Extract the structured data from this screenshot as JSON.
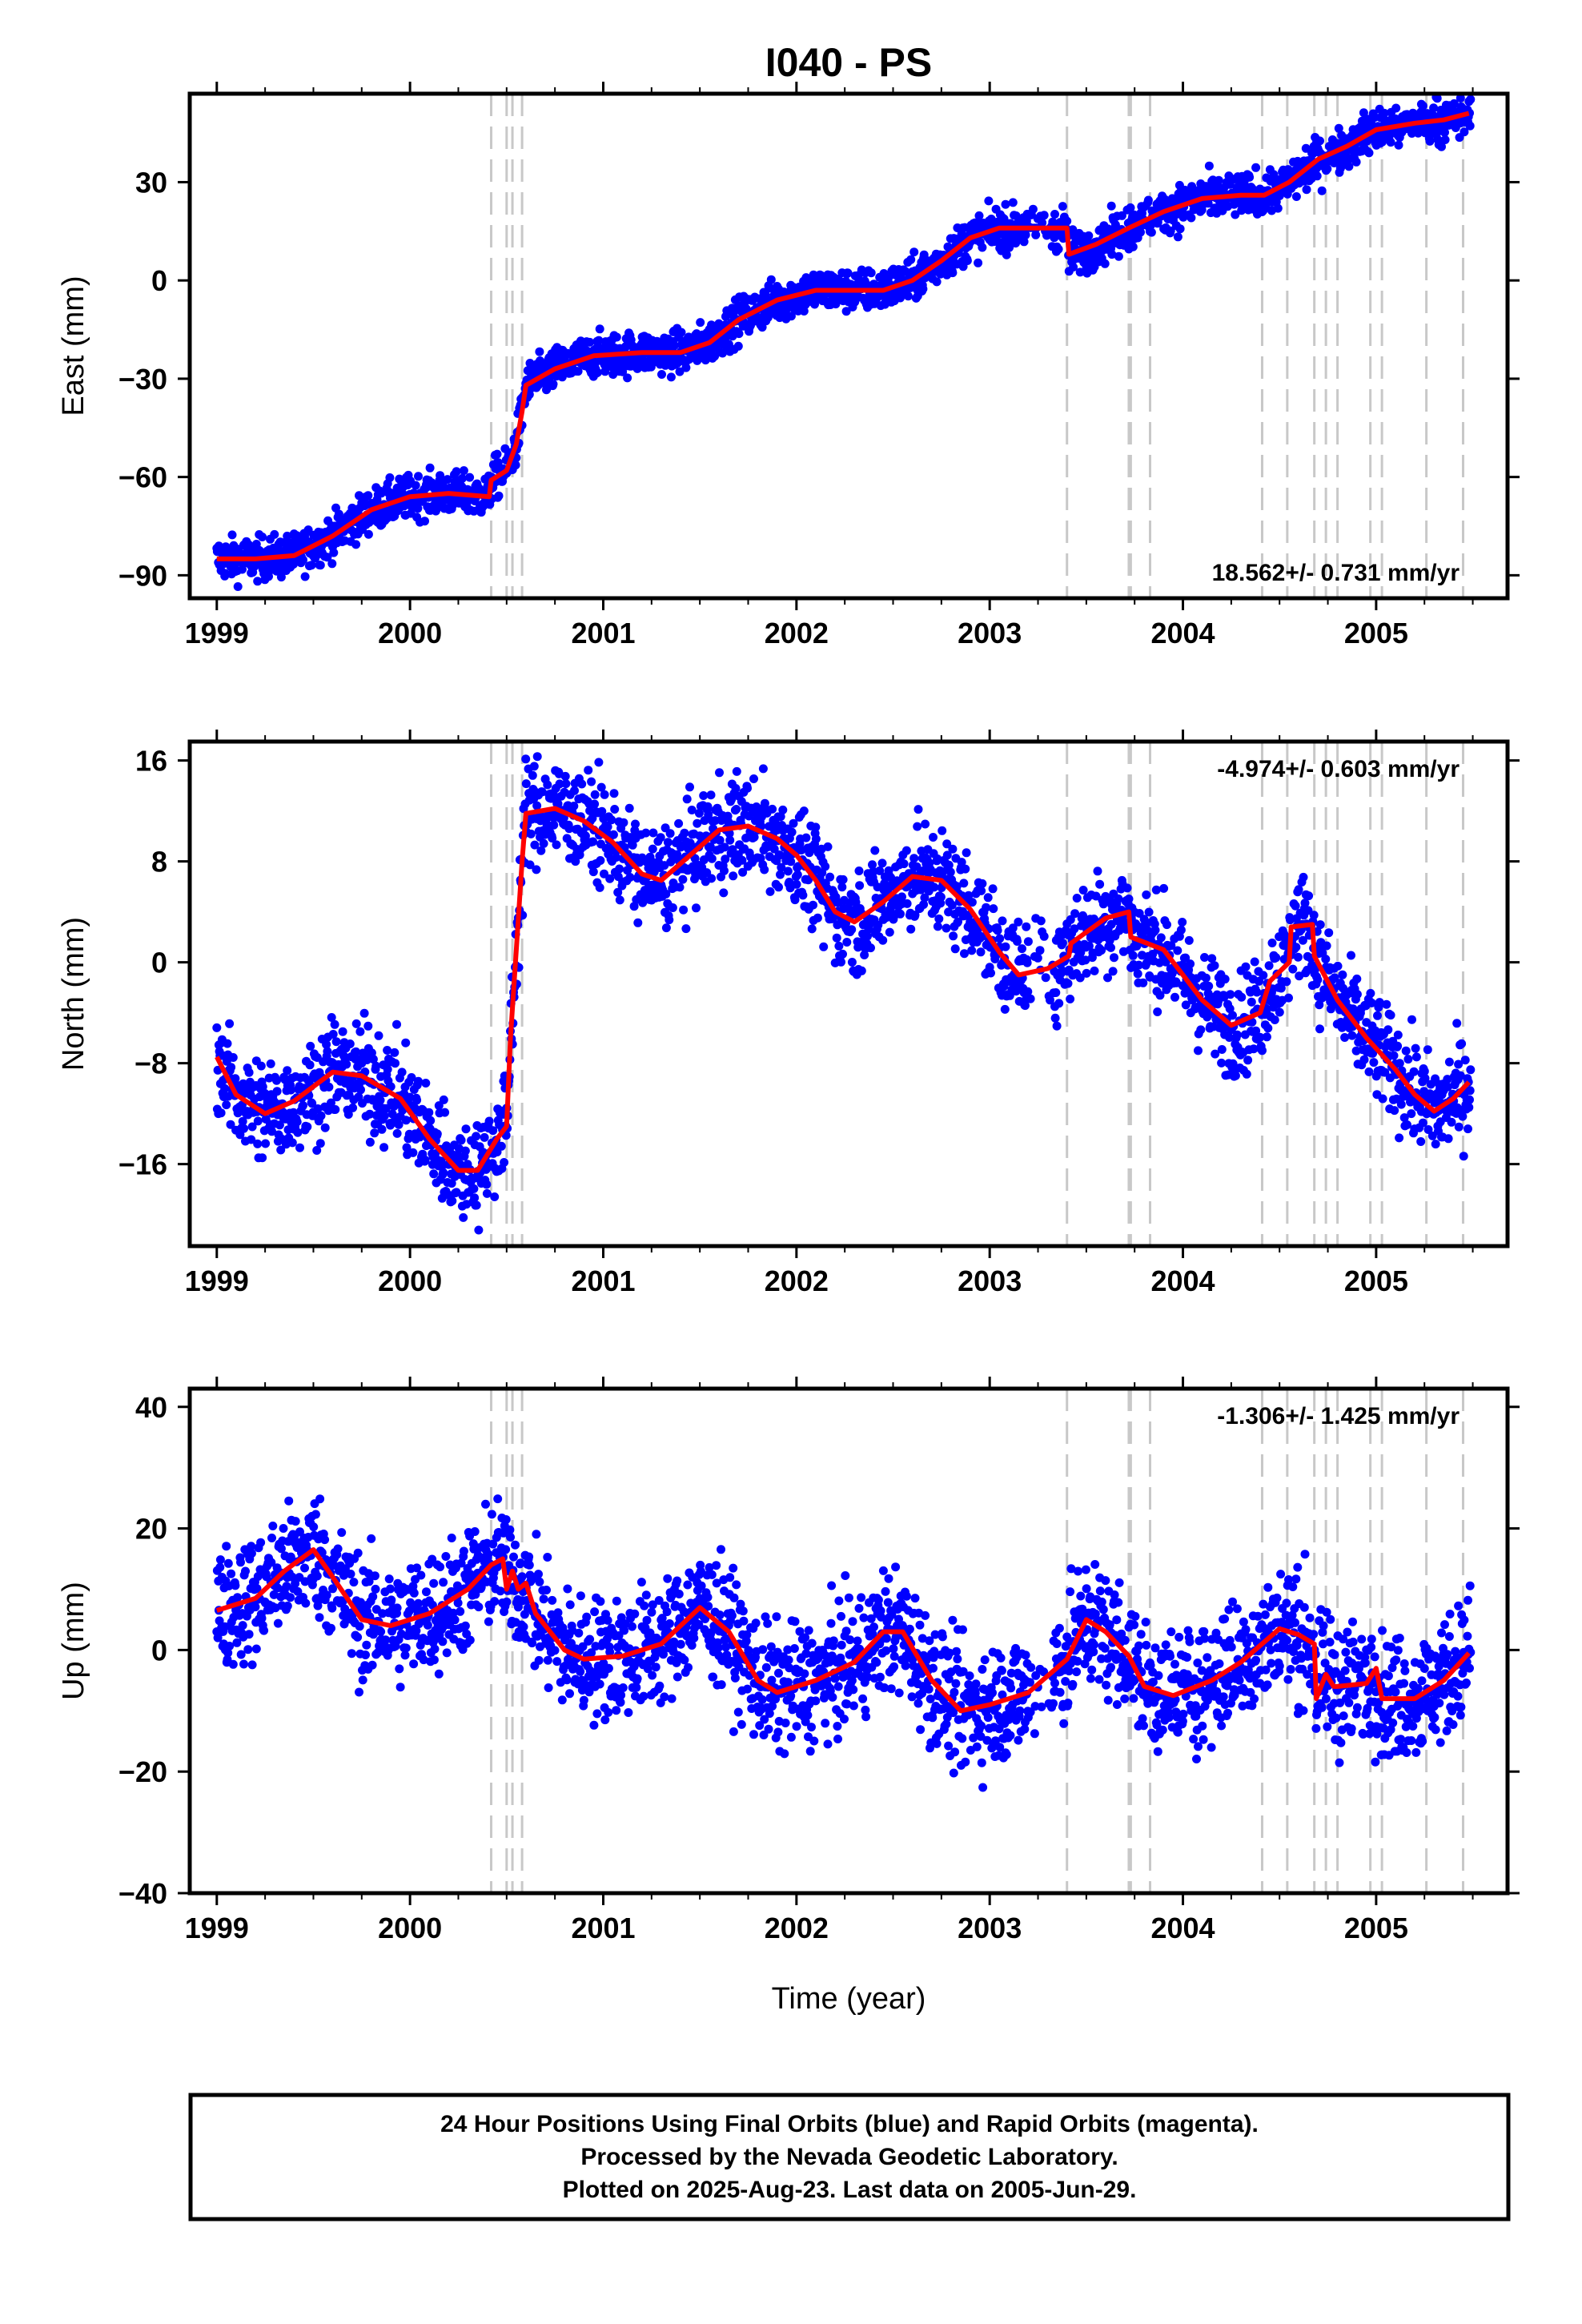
{
  "title": "I040 - PS",
  "xlabel": "Time (year)",
  "footer": [
    "24 Hour Positions Using Final Orbits (blue) and Rapid Orbits (magenta).",
    "Processed by the Nevada Geodetic Laboratory.",
    "Plotted on 2025-Aug-23. Last data on 2005-Jun-29."
  ],
  "colors": {
    "final_orbits": "#0000ff",
    "model": "#ff0000",
    "events": "#c8c8c8"
  },
  "chart_data": {
    "type": "scatter",
    "x_ticks": [
      1999,
      2000,
      2001,
      2002,
      2003,
      2004,
      2005
    ],
    "xlim": [
      1998.86,
      2005.68
    ],
    "event_lines": [
      2000.42,
      2000.5,
      2000.53,
      2000.58,
      2003.4,
      2003.72,
      2003.73,
      2003.83,
      2004.41,
      2004.54,
      2004.68,
      2004.74,
      2004.8,
      2004.97,
      2005.03,
      2005.26,
      2005.45
    ],
    "panels": [
      {
        "ylabel": "East (mm)",
        "ylim": [
          -97,
          57
        ],
        "y_ticks": [
          -90,
          -60,
          -30,
          0,
          30
        ],
        "rate": "18.562+/- 0.731 mm/yr",
        "rate_position": "bottom-right",
        "scatter": 3.2,
        "model": [
          [
            1999.0,
            -85
          ],
          [
            1999.2,
            -85
          ],
          [
            1999.4,
            -84
          ],
          [
            1999.6,
            -78
          ],
          [
            1999.8,
            -70
          ],
          [
            2000.0,
            -66
          ],
          [
            2000.2,
            -65
          ],
          [
            2000.41,
            -66
          ],
          [
            2000.42,
            -61
          ],
          [
            2000.5,
            -58
          ],
          [
            2000.55,
            -50
          ],
          [
            2000.58,
            -40
          ],
          [
            2000.6,
            -32
          ],
          [
            2000.75,
            -27
          ],
          [
            2000.95,
            -23
          ],
          [
            2001.2,
            -22
          ],
          [
            2001.4,
            -22
          ],
          [
            2001.55,
            -19
          ],
          [
            2001.7,
            -12
          ],
          [
            2001.9,
            -6
          ],
          [
            2002.1,
            -3
          ],
          [
            2002.3,
            -3
          ],
          [
            2002.45,
            -3
          ],
          [
            2002.6,
            0
          ],
          [
            2002.75,
            6
          ],
          [
            2002.9,
            13
          ],
          [
            2003.05,
            16
          ],
          [
            2003.2,
            16
          ],
          [
            2003.4,
            16
          ],
          [
            2003.41,
            8
          ],
          [
            2003.55,
            11
          ],
          [
            2003.72,
            16
          ],
          [
            2003.9,
            21
          ],
          [
            2004.1,
            25
          ],
          [
            2004.3,
            26
          ],
          [
            2004.42,
            26
          ],
          [
            2004.55,
            30
          ],
          [
            2004.7,
            37
          ],
          [
            2004.85,
            41
          ],
          [
            2005.0,
            46
          ],
          [
            2005.2,
            48
          ],
          [
            2005.35,
            49
          ],
          [
            2005.48,
            51
          ]
        ]
      },
      {
        "ylabel": "North (mm)",
        "ylim": [
          -22.5,
          17.5
        ],
        "y_ticks": [
          -16,
          -8,
          0,
          8,
          16
        ],
        "rate": "-4.974+/- 0.603 mm/yr",
        "rate_position": "top-right",
        "scatter": 2.0,
        "model": [
          [
            1999.0,
            -7.5
          ],
          [
            1999.1,
            -10.5
          ],
          [
            1999.25,
            -12
          ],
          [
            1999.4,
            -11
          ],
          [
            1999.6,
            -8.7
          ],
          [
            1999.75,
            -9
          ],
          [
            1999.95,
            -10.8
          ],
          [
            2000.1,
            -14
          ],
          [
            2000.25,
            -16.5
          ],
          [
            2000.35,
            -16.5
          ],
          [
            2000.45,
            -14
          ],
          [
            2000.5,
            -13
          ],
          [
            2000.52,
            -6
          ],
          [
            2000.55,
            1
          ],
          [
            2000.58,
            8
          ],
          [
            2000.6,
            11.8
          ],
          [
            2000.75,
            12.2
          ],
          [
            2000.9,
            11.2
          ],
          [
            2001.05,
            9.5
          ],
          [
            2001.2,
            7
          ],
          [
            2001.3,
            6.5
          ],
          [
            2001.45,
            8.5
          ],
          [
            2001.6,
            10.5
          ],
          [
            2001.75,
            10.8
          ],
          [
            2001.9,
            9.8
          ],
          [
            2002.0,
            8.5
          ],
          [
            2002.1,
            6.5
          ],
          [
            2002.2,
            4
          ],
          [
            2002.3,
            3.2
          ],
          [
            2002.45,
            4.8
          ],
          [
            2002.6,
            6.8
          ],
          [
            2002.75,
            6.5
          ],
          [
            2002.9,
            4.2
          ],
          [
            2003.05,
            0.8
          ],
          [
            2003.15,
            -1
          ],
          [
            2003.3,
            -0.5
          ],
          [
            2003.41,
            0.5
          ],
          [
            2003.42,
            1.5
          ],
          [
            2003.6,
            3.5
          ],
          [
            2003.72,
            4
          ],
          [
            2003.73,
            2
          ],
          [
            2003.9,
            1
          ],
          [
            2004.1,
            -3
          ],
          [
            2004.25,
            -5
          ],
          [
            2004.4,
            -4
          ],
          [
            2004.45,
            -1.5
          ],
          [
            2004.55,
            0
          ],
          [
            2004.56,
            2.8
          ],
          [
            2004.67,
            3
          ],
          [
            2004.68,
            0.5
          ],
          [
            2004.8,
            -3
          ],
          [
            2004.95,
            -6
          ],
          [
            2005.1,
            -8.5
          ],
          [
            2005.2,
            -10.5
          ],
          [
            2005.3,
            -11.8
          ],
          [
            2005.4,
            -10.8
          ],
          [
            2005.48,
            -9.5
          ]
        ]
      },
      {
        "ylabel": "Up (mm)",
        "ylim": [
          -40,
          43
        ],
        "y_ticks": [
          -40,
          -20,
          0,
          20,
          40
        ],
        "rate": "-1.306+/- 1.425 mm/yr",
        "rate_position": "top-right",
        "scatter": 5.0,
        "model": [
          [
            1999.0,
            6.5
          ],
          [
            1999.2,
            8.5
          ],
          [
            1999.35,
            13
          ],
          [
            1999.5,
            16.5
          ],
          [
            1999.6,
            12
          ],
          [
            1999.75,
            5
          ],
          [
            1999.9,
            4
          ],
          [
            2000.1,
            6
          ],
          [
            2000.3,
            10
          ],
          [
            2000.42,
            14
          ],
          [
            2000.48,
            15
          ],
          [
            2000.5,
            10
          ],
          [
            2000.53,
            13
          ],
          [
            2000.56,
            10
          ],
          [
            2000.6,
            11
          ],
          [
            2000.65,
            6
          ],
          [
            2000.8,
            0
          ],
          [
            2000.9,
            -1.5
          ],
          [
            2001.1,
            -1
          ],
          [
            2001.3,
            1
          ],
          [
            2001.5,
            7
          ],
          [
            2001.65,
            3
          ],
          [
            2001.8,
            -5
          ],
          [
            2001.9,
            -7
          ],
          [
            2002.1,
            -5
          ],
          [
            2002.3,
            -2
          ],
          [
            2002.45,
            3
          ],
          [
            2002.55,
            3
          ],
          [
            2002.7,
            -5
          ],
          [
            2002.85,
            -10
          ],
          [
            2003.0,
            -9
          ],
          [
            2003.2,
            -7
          ],
          [
            2003.4,
            -1.5
          ],
          [
            2003.5,
            5
          ],
          [
            2003.6,
            3
          ],
          [
            2003.72,
            -1
          ],
          [
            2003.8,
            -6
          ],
          [
            2003.95,
            -7.5
          ],
          [
            2004.15,
            -5
          ],
          [
            2004.3,
            -2
          ],
          [
            2004.5,
            3.5
          ],
          [
            2004.6,
            2.5
          ],
          [
            2004.68,
            1
          ],
          [
            2004.69,
            -8
          ],
          [
            2004.74,
            -4
          ],
          [
            2004.78,
            -6
          ],
          [
            2004.8,
            -6
          ],
          [
            2004.95,
            -5.5
          ],
          [
            2005.0,
            -3
          ],
          [
            2005.03,
            -8
          ],
          [
            2005.2,
            -8
          ],
          [
            2005.35,
            -5
          ],
          [
            2005.48,
            -0.5
          ]
        ]
      }
    ]
  }
}
